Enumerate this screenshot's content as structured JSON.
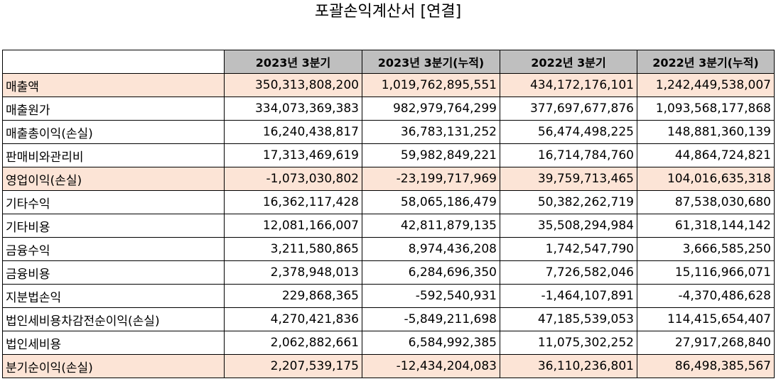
{
  "title": "포괄손익계산서 [연결]",
  "colors": {
    "header_bg": "#bfbfbf",
    "highlight_bg": "#fce4d6"
  },
  "columns": [
    "",
    "2023년 3분기",
    "2023년 3분기(누적)",
    "2022년 3분기",
    "2022년 3분기(누적)"
  ],
  "rows": [
    {
      "label": "매출액",
      "highlight": true,
      "values": [
        "350,313,808,200",
        "1,019,762,895,551",
        "434,172,176,101",
        "1,242,449,538,007"
      ]
    },
    {
      "label": "매출원가",
      "highlight": false,
      "values": [
        "334,073,369,383",
        "982,979,764,299",
        "377,697,677,876",
        "1,093,568,177,868"
      ]
    },
    {
      "label": "매출총이익(손실)",
      "highlight": false,
      "values": [
        "16,240,438,817",
        "36,783,131,252",
        "56,474,498,225",
        "148,881,360,139"
      ]
    },
    {
      "label": "판매비와관리비",
      "highlight": false,
      "values": [
        "17,313,469,619",
        "59,982,849,221",
        "16,714,784,760",
        "44,864,724,821"
      ]
    },
    {
      "label": "영업이익(손실)",
      "highlight": true,
      "values": [
        "-1,073,030,802",
        "-23,199,717,969",
        "39,759,713,465",
        "104,016,635,318"
      ]
    },
    {
      "label": "기타수익",
      "highlight": false,
      "values": [
        "16,362,117,428",
        "58,065,186,479",
        "50,382,262,719",
        "87,538,030,680"
      ]
    },
    {
      "label": "기타비용",
      "highlight": false,
      "values": [
        "12,081,166,007",
        "42,811,879,135",
        "35,508,294,984",
        "61,318,144,142"
      ]
    },
    {
      "label": "금융수익",
      "highlight": false,
      "values": [
        "3,211,580,865",
        "8,974,436,208",
        "1,742,547,790",
        "3,666,585,250"
      ]
    },
    {
      "label": "금융비용",
      "highlight": false,
      "values": [
        "2,378,948,013",
        "6,284,696,350",
        "7,726,582,046",
        "15,116,966,071"
      ]
    },
    {
      "label": "지분법손익",
      "highlight": false,
      "values": [
        "229,868,365",
        "-592,540,931",
        "-1,464,107,891",
        "-4,370,486,628"
      ]
    },
    {
      "label": "법인세비용차감전순이익(손실)",
      "highlight": false,
      "values": [
        "4,270,421,836",
        "-5,849,211,698",
        "47,185,539,053",
        "114,415,654,407"
      ]
    },
    {
      "label": "법인세비용",
      "highlight": false,
      "values": [
        "2,062,882,661",
        "6,584,992,385",
        "11,075,302,252",
        "27,917,268,840"
      ]
    },
    {
      "label": "분기순이익(손실)",
      "highlight": true,
      "values": [
        "2,207,539,175",
        "-12,434,204,083",
        "36,110,236,801",
        "86,498,385,567"
      ]
    }
  ]
}
